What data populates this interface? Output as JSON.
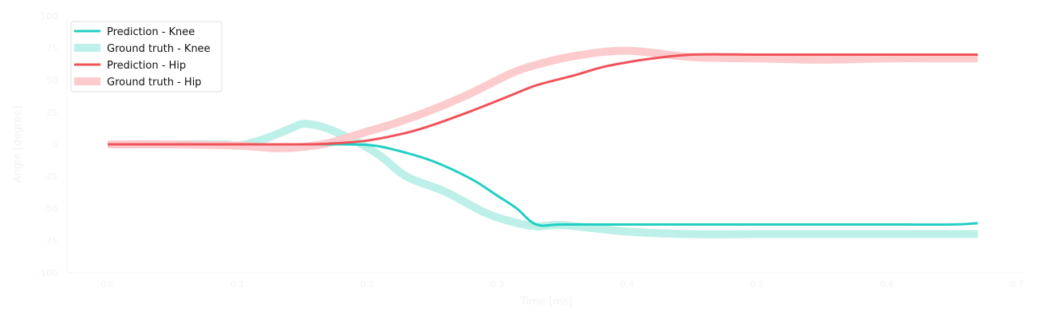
{
  "chart_data": {
    "type": "line",
    "xlabel": "Time [ms]",
    "ylabel": "Angle [degree]",
    "xlim": [
      -0.03,
      0.7
    ],
    "ylim": [
      -100,
      100
    ],
    "xticks": [
      "0.0",
      "0.1",
      "0.2",
      "0.3",
      "0.4",
      "0.5",
      "0.6",
      "0.7"
    ],
    "yticks": [
      "-100",
      "-75",
      "-50",
      "-25",
      "0",
      "25",
      "50",
      "75",
      "100"
    ],
    "legend_position": "top-left",
    "grid": false,
    "series": [
      {
        "name": "Prediction - Knee",
        "color": "#20cfc3",
        "style": "solid",
        "x": [
          0,
          0.05,
          0.1,
          0.15,
          0.17,
          0.2,
          0.22,
          0.25,
          0.28,
          0.3,
          0.315,
          0.33,
          0.35,
          0.4,
          0.45,
          0.5,
          0.55,
          0.6,
          0.65,
          0.67
        ],
        "y": [
          0,
          0,
          0,
          0,
          0,
          -0.5,
          -4,
          -13,
          -27,
          -40,
          -50,
          -62.5,
          -62.5,
          -62.5,
          -62.5,
          -62.5,
          -62.5,
          -62.5,
          -62.5,
          -61.5
        ]
      },
      {
        "name": "Ground truth - Knee",
        "color": "#bcf0e8",
        "style": "thick",
        "x": [
          0,
          0.05,
          0.09,
          0.1,
          0.12,
          0.14,
          0.15,
          0.16,
          0.17,
          0.19,
          0.21,
          0.23,
          0.26,
          0.29,
          0.31,
          0.33,
          0.35,
          0.4,
          0.45,
          0.5,
          0.55,
          0.6,
          0.65,
          0.67
        ],
        "y": [
          0,
          0,
          0,
          -1,
          4,
          12,
          16,
          15,
          12,
          3,
          -9,
          -25,
          -37,
          -53,
          -60,
          -64,
          -63,
          -68,
          -70,
          -70,
          -70,
          -70,
          -70,
          -70
        ]
      },
      {
        "name": "Prediction - Hip",
        "color": "#f05259",
        "style": "solid",
        "x": [
          0,
          0.05,
          0.1,
          0.15,
          0.17,
          0.2,
          0.23,
          0.25,
          0.28,
          0.31,
          0.33,
          0.36,
          0.38,
          0.4,
          0.42,
          0.45,
          0.5,
          0.55,
          0.6,
          0.65,
          0.67
        ],
        "y": [
          0,
          0,
          0,
          0,
          0.5,
          3,
          9,
          15,
          26,
          38,
          46,
          54,
          60,
          64,
          67,
          70,
          70,
          70,
          70,
          70,
          70
        ]
      },
      {
        "name": "Ground truth - Hip",
        "color": "#fccbce",
        "style": "thick",
        "x": [
          0,
          0.05,
          0.1,
          0.13,
          0.15,
          0.17,
          0.2,
          0.22,
          0.25,
          0.28,
          0.31,
          0.33,
          0.36,
          0.4,
          0.45,
          0.5,
          0.55,
          0.6,
          0.65,
          0.67
        ],
        "y": [
          0,
          0,
          -1,
          -3,
          -2,
          1,
          10,
          16,
          27,
          40,
          55,
          62,
          69,
          73,
          68,
          67,
          66,
          67,
          67,
          67
        ]
      }
    ]
  }
}
